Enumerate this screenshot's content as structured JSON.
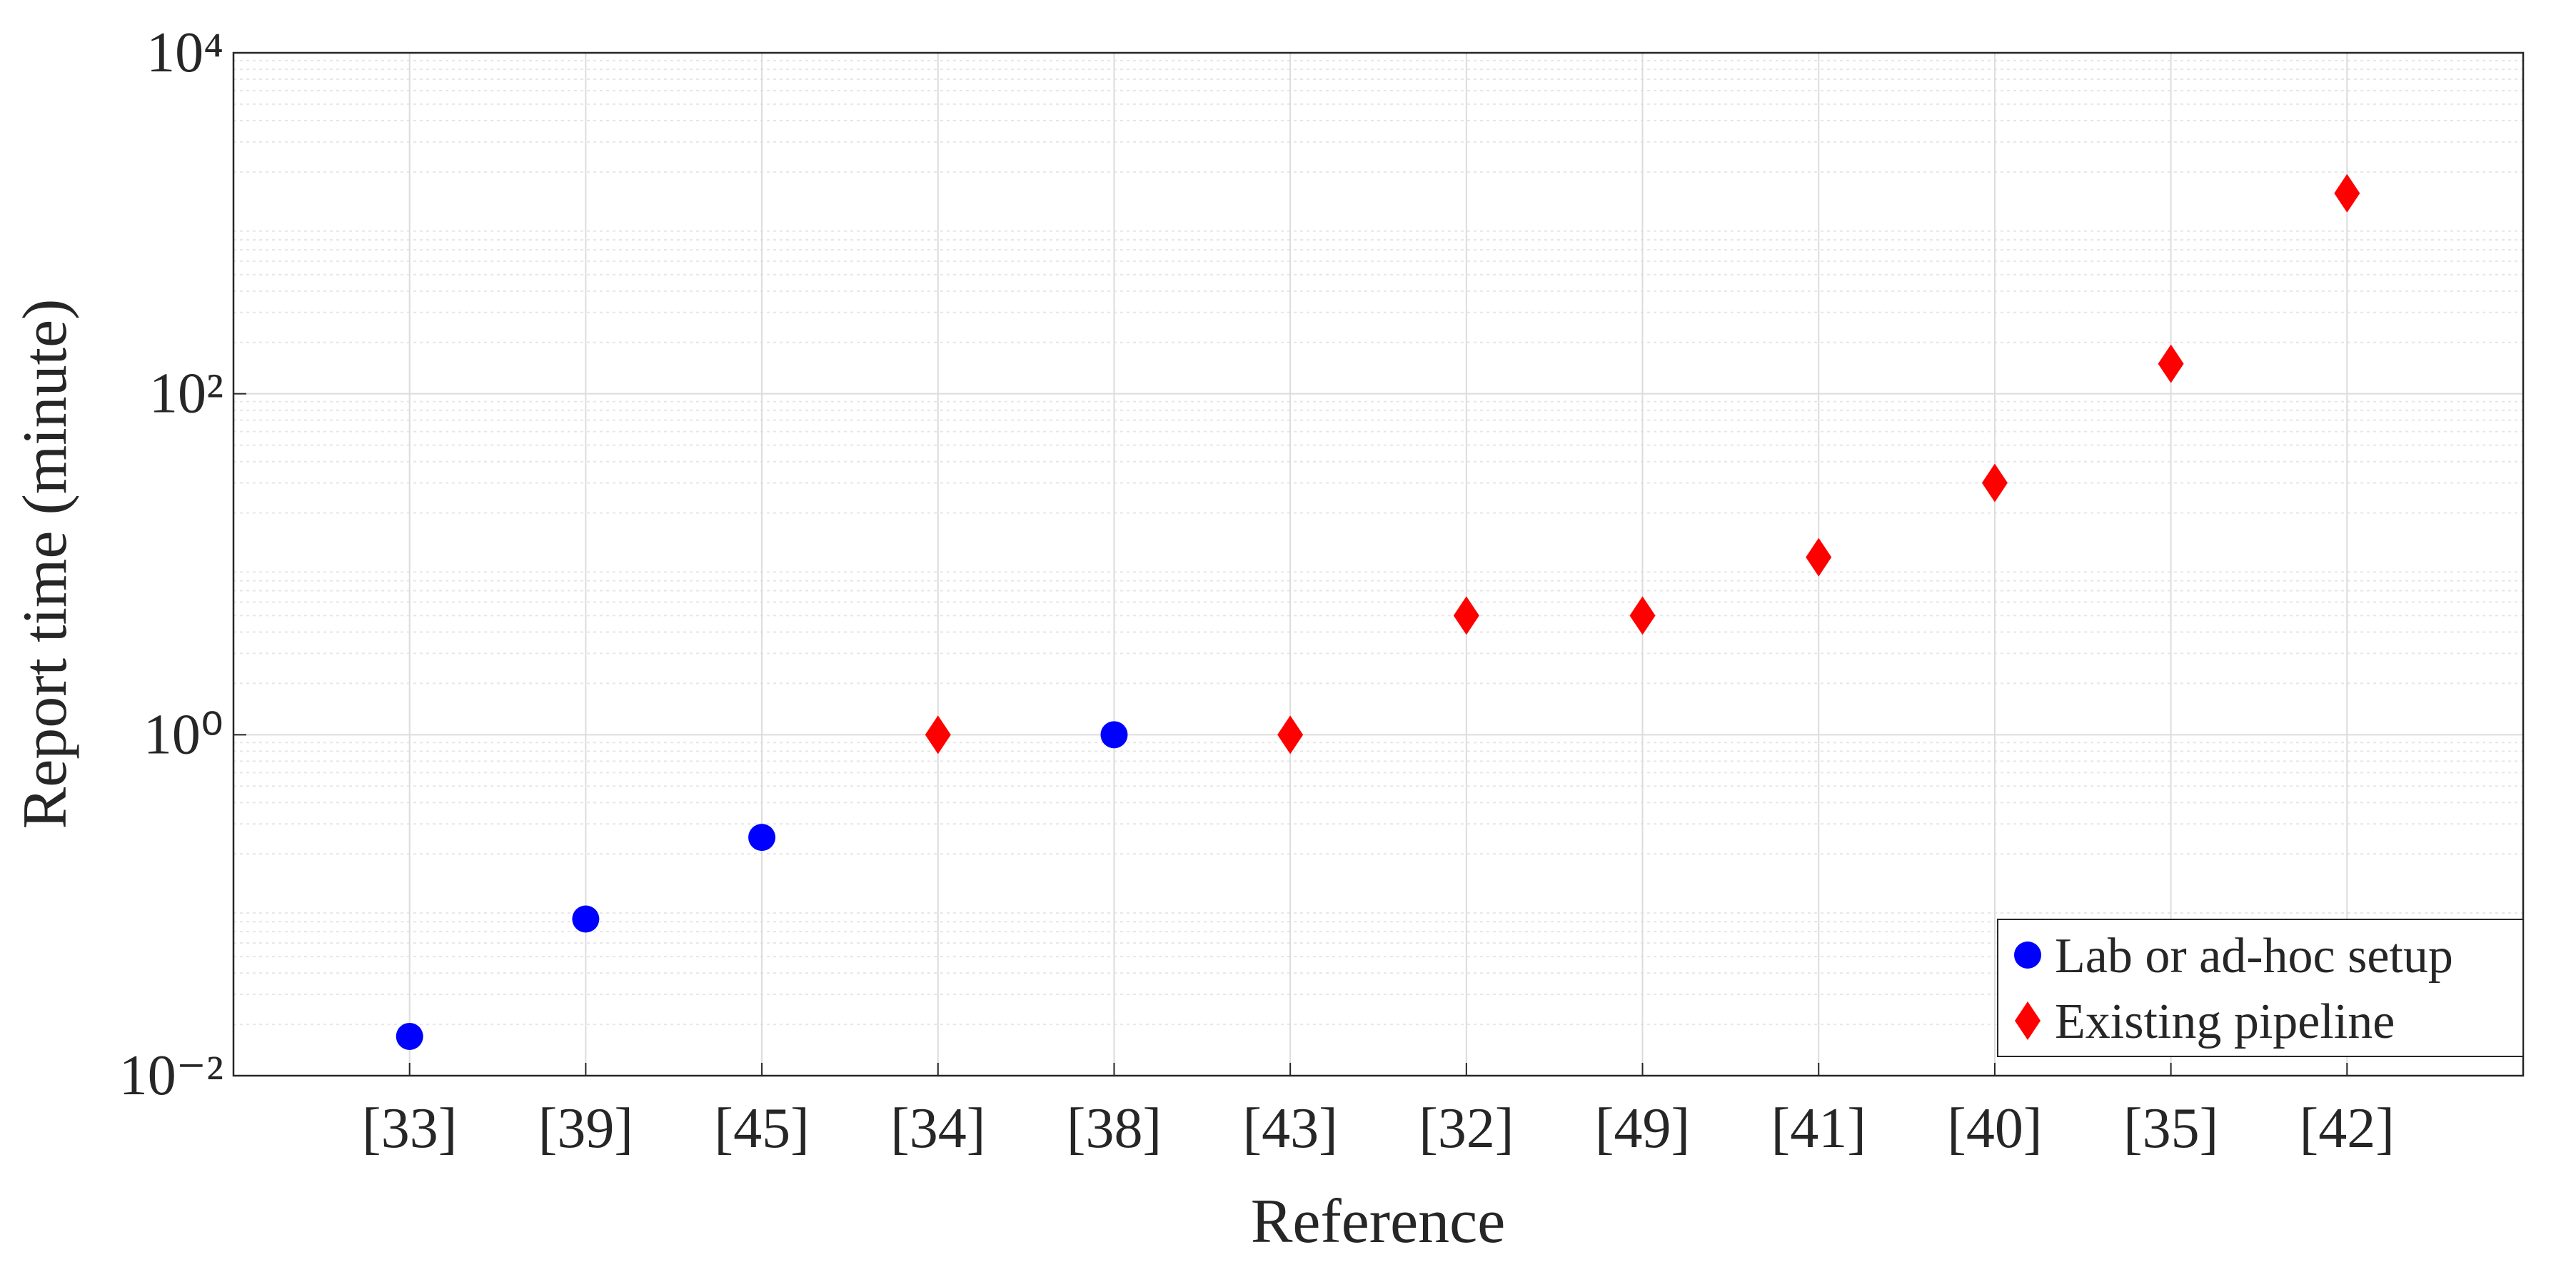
{
  "chart_data": {
    "type": "scatter",
    "x_label": "Reference",
    "y_label": "Report time (minute)",
    "categories": [
      "[33]",
      "[39]",
      "[45]",
      "[34]",
      "[38]",
      "[43]",
      "[32]",
      "[49]",
      "[41]",
      "[40]",
      "[35]",
      "[42]"
    ],
    "series": [
      {
        "name": "Lab or ad-hoc setup",
        "color": "#0000ff",
        "marker": "circle",
        "values": [
          0.017,
          0.083,
          0.25,
          null,
          1,
          null,
          null,
          null,
          null,
          null,
          null,
          null
        ]
      },
      {
        "name": "Existing pipeline",
        "color": "#ff0000",
        "marker": "diamond",
        "values": [
          null,
          null,
          null,
          1,
          null,
          1,
          5,
          5,
          11,
          30,
          150,
          1500
        ]
      }
    ],
    "y_log": true,
    "ylim": [
      0.01,
      10000
    ],
    "yticks": [
      {
        "value": 0.01,
        "label": "10⁻²"
      },
      {
        "value": 1,
        "label": "10⁰"
      },
      {
        "value": 100,
        "label": "10²"
      },
      {
        "value": 10000,
        "label": "10⁴"
      }
    ],
    "grid": true,
    "minor_grid": true,
    "legend": "lower right"
  }
}
